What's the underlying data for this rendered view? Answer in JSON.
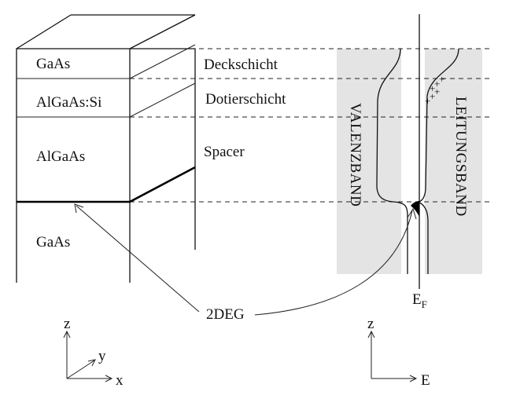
{
  "layers": {
    "gaas_top": "GaAs",
    "algaas_si": "AlGaAs:Si",
    "algaas": "AlGaAs",
    "gaas_bottom": "GaAs"
  },
  "labels": {
    "cap": "Deckschicht",
    "doping": "Dotierschicht",
    "spacer": "Spacer"
  },
  "bands": {
    "valence": "VALENZBAND",
    "conduction": "LEITUNGSBAND"
  },
  "twodeg": "2DEG",
  "fermi": {
    "main": "E",
    "sub": "F"
  },
  "plus_signs": "+",
  "axes_left": {
    "z": "z",
    "y": "y",
    "x": "x"
  },
  "axes_right": {
    "z": "z",
    "e": "E"
  }
}
